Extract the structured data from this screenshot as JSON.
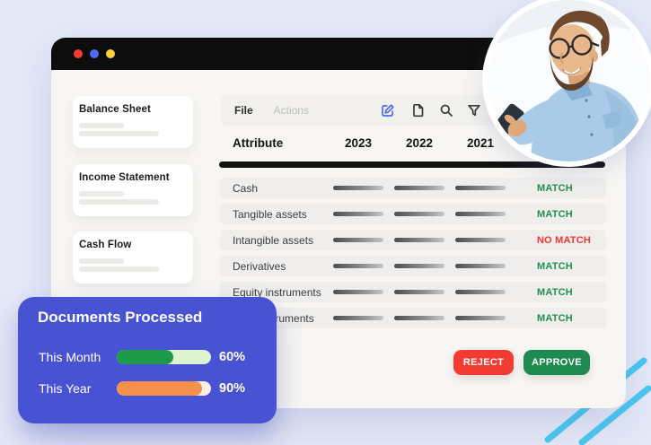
{
  "window": {
    "titlebar": {
      "dots": [
        {
          "name": "close",
          "color": "#f83b2f"
        },
        {
          "name": "minimize",
          "color": "#4b6bf5"
        },
        {
          "name": "maximize",
          "color": "#fccf3c"
        }
      ]
    },
    "sidebar": {
      "items": [
        {
          "title": "Balance Sheet"
        },
        {
          "title": "Income Statement"
        },
        {
          "title": "Cash Flow"
        }
      ]
    },
    "toolbar": {
      "menu": [
        {
          "label": "File"
        },
        {
          "label": "Actions"
        }
      ],
      "icons": [
        "edit-icon",
        "document-icon",
        "search-icon",
        "filter-icon"
      ],
      "edit_icon_color": "#4a6cf6"
    },
    "table": {
      "columns": [
        "Attribute",
        "2023",
        "2022",
        "2021"
      ],
      "rows": [
        {
          "attribute": "Cash",
          "status": "MATCH",
          "status_class": "match"
        },
        {
          "attribute": "Tangible assets",
          "status": "MATCH",
          "status_class": "match"
        },
        {
          "attribute": "Intangible assets",
          "status": "NO MATCH",
          "status_class": "nomatch"
        },
        {
          "attribute": "Derivatives",
          "status": "MATCH",
          "status_class": "match"
        },
        {
          "attribute": "Equity instruments",
          "status": "MATCH",
          "status_class": "match"
        },
        {
          "attribute": "Debt instruments",
          "status": "MATCH",
          "status_class": "match"
        }
      ]
    },
    "actions": {
      "reject_label": "REJECT",
      "approve_label": "APPROVE",
      "reject_color": "#f23b31",
      "approve_color": "#1e8a4f"
    }
  },
  "overlay_card": {
    "title": "Documents Processed",
    "background": "#4853d4",
    "metrics": [
      {
        "label": "This Month",
        "value": "60%",
        "percent": 60,
        "fill_color": "#1d9b4b",
        "track_color": "#def3cf"
      },
      {
        "label": "This Year",
        "value": "90%",
        "percent": 90,
        "fill_color": "#f5914d",
        "track_color": "#fdefe8"
      }
    ]
  },
  "status_colors": {
    "match": "#1e9150",
    "no_match": "#f5352e"
  },
  "decorations": {
    "profile_photo": "man-with-glasses-holding-phone",
    "diagonal_lines_color": "#4ac7f1",
    "background_color": "#e4e8f7"
  }
}
